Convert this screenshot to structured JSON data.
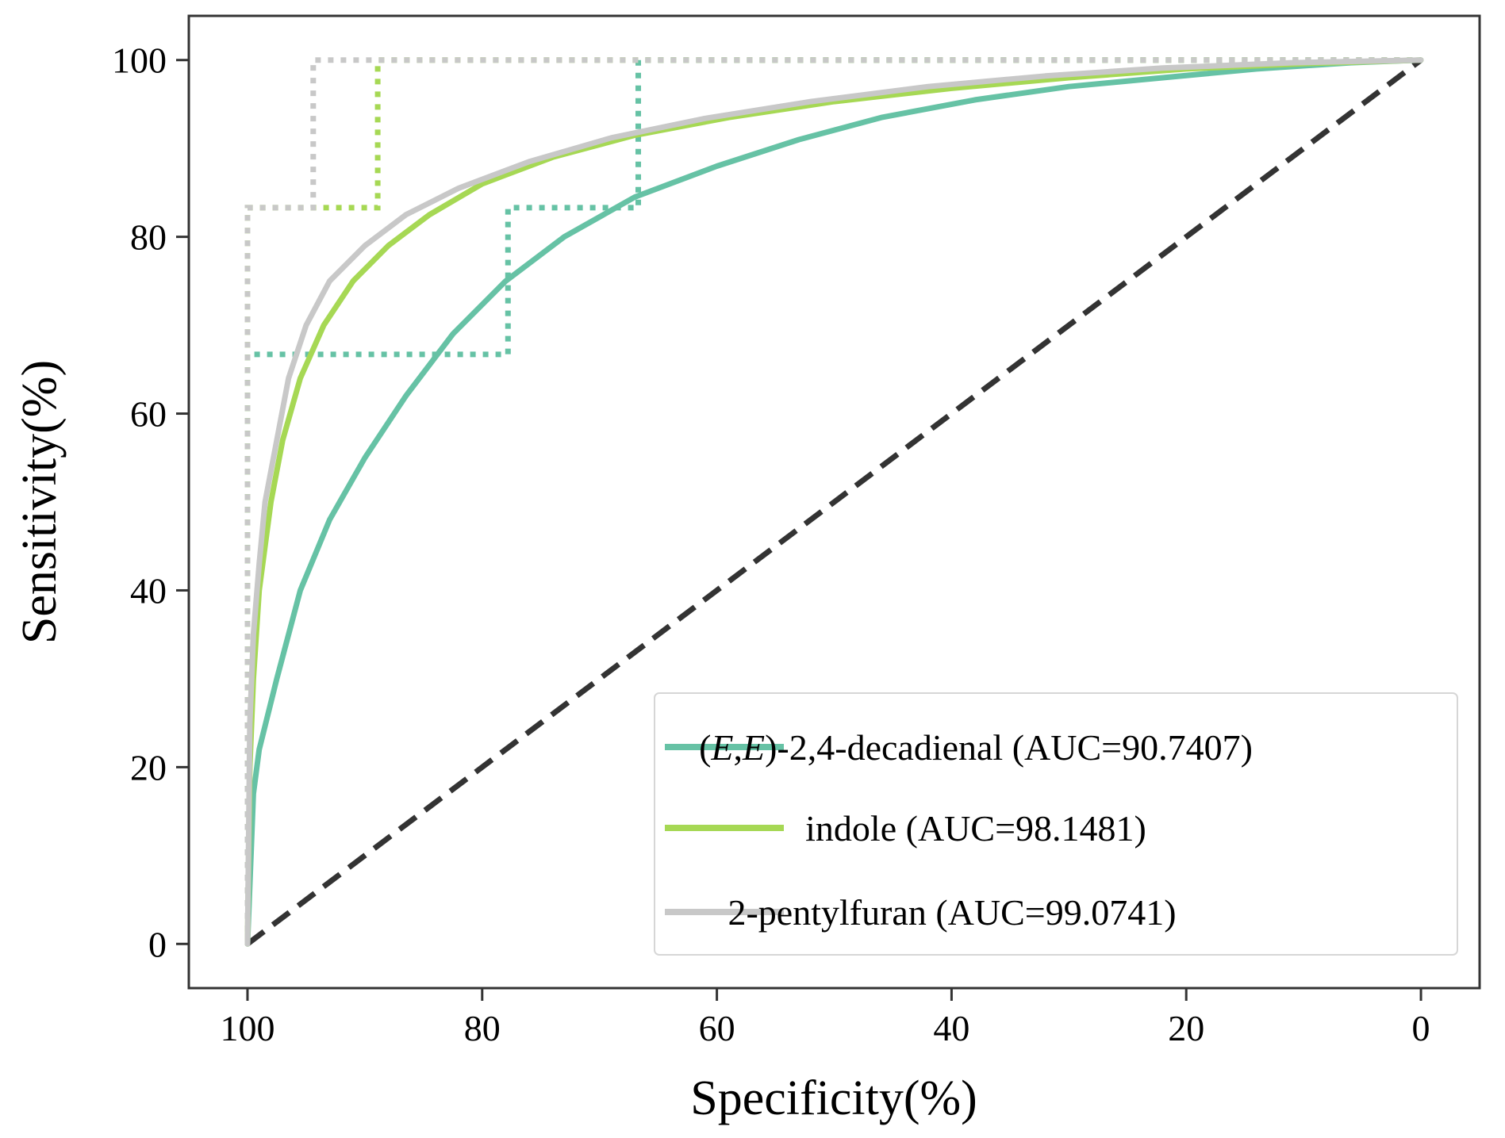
{
  "chart_data": {
    "type": "line",
    "xlabel": "Specificity(%)",
    "ylabel": "Sensitivity(%)",
    "xlim": [
      105,
      -5
    ],
    "ylim": [
      -5,
      105
    ],
    "x_reversed": true,
    "x_ticks": [
      100,
      80,
      60,
      40,
      20,
      0
    ],
    "y_ticks": [
      0,
      20,
      40,
      60,
      80,
      100
    ],
    "x_tick_labels": [
      "100",
      "80",
      "60",
      "40",
      "20",
      "0"
    ],
    "y_tick_labels": [
      "0",
      "20",
      "40",
      "60",
      "80",
      "100"
    ],
    "grid": false,
    "legend_position": "bottom-right",
    "diagonal_reference": {
      "color": "#333333",
      "style": "dashed",
      "x": [
        100,
        0
      ],
      "y": [
        0,
        100
      ]
    },
    "series": [
      {
        "name": "(E,E)-2,4-decadienal (AUC=90.7407)",
        "name_parts": [
          {
            "text": "(",
            "italic": false
          },
          {
            "text": "E",
            "italic": true
          },
          {
            "text": ",",
            "italic": false
          },
          {
            "text": "E",
            "italic": true
          },
          {
            "text": ")-2,4-decadienal (AUC=90.7407)",
            "italic": false
          }
        ],
        "color": "#66c2a5",
        "x": [
          100,
          99.5,
          99,
          97.5,
          95.5,
          93,
          90,
          86.5,
          82.5,
          78,
          73,
          67,
          60,
          53,
          46,
          38,
          30,
          22,
          14,
          6,
          0
        ],
        "y": [
          0,
          17,
          22,
          30,
          40,
          48,
          55,
          62,
          69,
          75,
          80,
          84.5,
          88,
          91,
          93.5,
          95.5,
          97,
          98,
          99,
          99.7,
          100
        ],
        "step_x": [
          100,
          100,
          77.8,
          77.8,
          66.7,
          66.7,
          0
        ],
        "step_y": [
          0,
          66.7,
          66.7,
          83.3,
          83.3,
          100,
          100
        ]
      },
      {
        "name": "indole (AUC=98.1481)",
        "color": "#a6d854",
        "x": [
          100,
          99.8,
          99.5,
          99,
          98,
          97,
          95.5,
          93.5,
          91,
          88,
          84.5,
          80,
          74,
          67,
          59,
          50,
          40,
          30,
          20,
          10,
          0
        ],
        "y": [
          0,
          20,
          30,
          40,
          50,
          57,
          64,
          70,
          75,
          79,
          82.5,
          86,
          89,
          91.5,
          93.5,
          95.3,
          96.8,
          98,
          99,
          99.6,
          100
        ],
        "step_x": [
          100,
          100,
          94.4,
          94.4,
          88.9,
          88.9,
          0
        ],
        "step_y": [
          0,
          83.3,
          83.3,
          83.3,
          83.3,
          100,
          100
        ]
      },
      {
        "name": "2-pentylfuran (AUC=99.0741)",
        "color": "#c8c8c8",
        "x": [
          100,
          99.8,
          99.5,
          99,
          98.5,
          97.5,
          96.5,
          95,
          93,
          90,
          86.5,
          82,
          76,
          69,
          61,
          52,
          42,
          32,
          22,
          11,
          0
        ],
        "y": [
          0,
          25,
          35,
          43,
          50,
          57,
          64,
          70,
          75,
          79,
          82.5,
          85.5,
          88.5,
          91.2,
          93.4,
          95.3,
          97,
          98.2,
          99.1,
          99.7,
          100
        ],
        "step_x": [
          100,
          100,
          94.4,
          94.4,
          0
        ],
        "step_y": [
          0,
          83.3,
          83.3,
          100,
          100
        ]
      }
    ]
  }
}
